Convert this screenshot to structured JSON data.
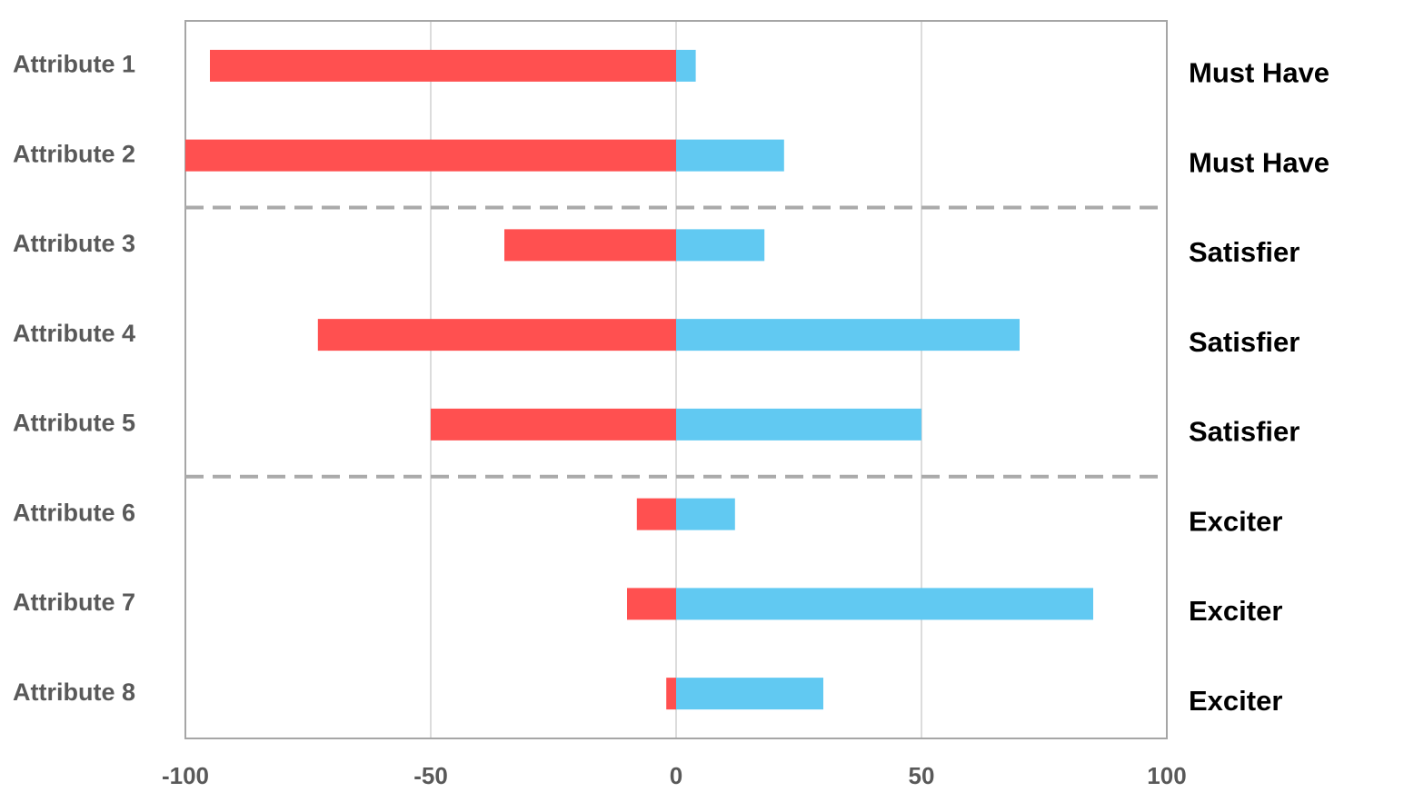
{
  "chart_data": {
    "type": "bar",
    "orientation": "horizontal",
    "categories": [
      "Attribute 1",
      "Attribute 2",
      "Attribute 3",
      "Attribute 4",
      "Attribute 5",
      "Attribute 6",
      "Attribute 7",
      "Attribute 8"
    ],
    "series": [
      {
        "color": "#ff5050",
        "values": [
          -95,
          -100,
          -35,
          -73,
          -50,
          -8,
          -10,
          -2
        ]
      },
      {
        "color": "#61c9f2",
        "values": [
          4,
          22,
          18,
          70,
          50,
          12,
          85,
          30
        ]
      }
    ],
    "annotations": [
      "Must Have",
      "Must Have",
      "Satisfier",
      "Satisfier",
      "Satisfier",
      "Exciter",
      "Exciter",
      "Exciter"
    ],
    "xlim": [
      -100,
      100
    ],
    "xticks": [
      -100,
      -50,
      0,
      50,
      100
    ],
    "grid": true
  }
}
